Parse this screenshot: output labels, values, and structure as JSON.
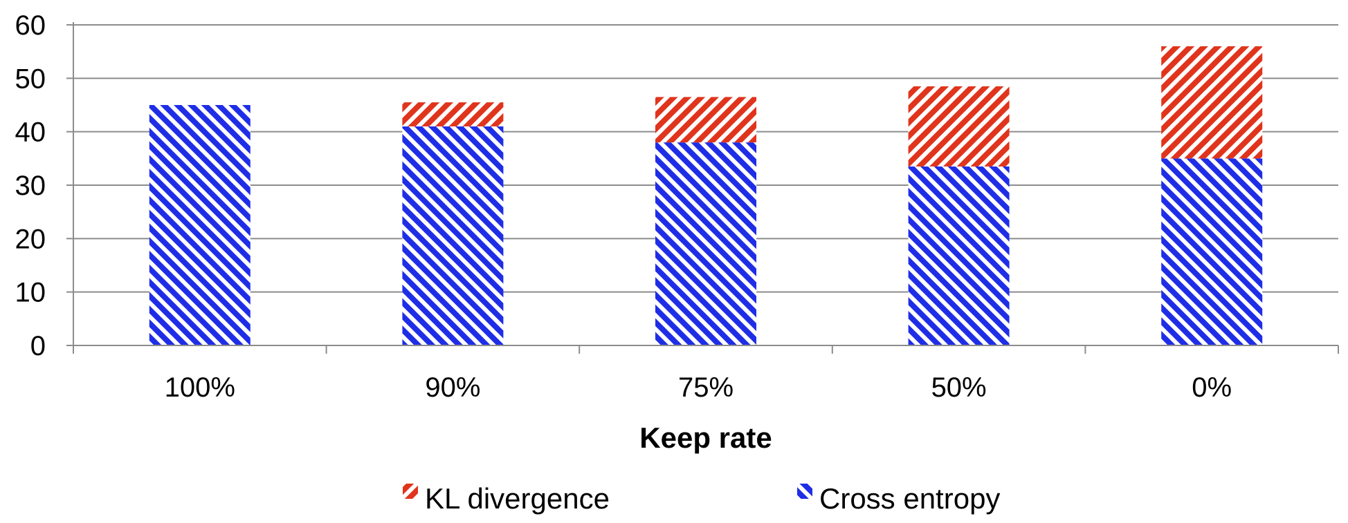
{
  "chart_data": {
    "type": "bar",
    "stacked": true,
    "categories": [
      "100%",
      "90%",
      "75%",
      "50%",
      "0%"
    ],
    "series": [
      {
        "name": "Cross entropy",
        "values": [
          45,
          41,
          38,
          33.5,
          35
        ],
        "color": "#1f2ee6",
        "pattern": "diagonal-hatch"
      },
      {
        "name": "KL divergence",
        "values": [
          0,
          4.5,
          8.5,
          15,
          21
        ],
        "color": "#e0341c",
        "pattern": "diagonal-hatch"
      }
    ],
    "xlabel": "Keep rate",
    "ylabel": "",
    "ylim": [
      0,
      60
    ],
    "yticks": [
      0,
      10,
      20,
      30,
      40,
      50,
      60
    ],
    "grid": true,
    "legend": {
      "position": "bottom",
      "order": [
        "KL divergence",
        "Cross entropy"
      ]
    }
  }
}
